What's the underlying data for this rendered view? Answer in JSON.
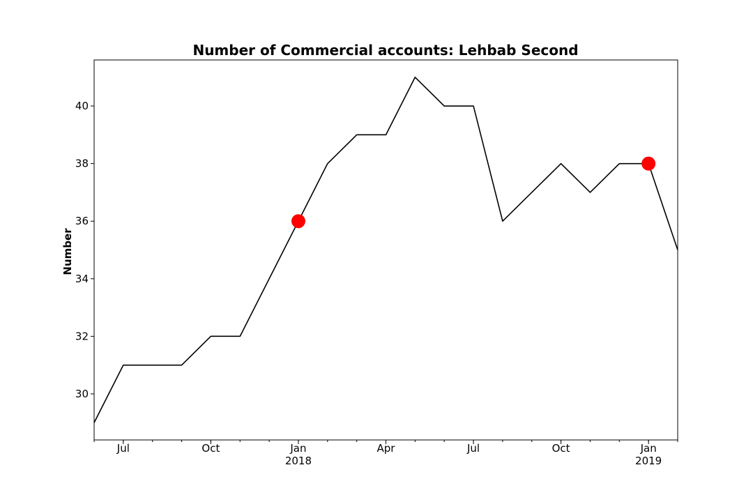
{
  "chart_data": {
    "type": "line",
    "title": "Number of Commercial accounts: Lehbab Second",
    "xlabel": "",
    "ylabel": "Number",
    "x": [
      "2017-06",
      "2017-07",
      "2017-08",
      "2017-09",
      "2017-10",
      "2017-11",
      "2017-12",
      "2018-01",
      "2018-02",
      "2018-03",
      "2018-04",
      "2018-05",
      "2018-06",
      "2018-07",
      "2018-08",
      "2018-09",
      "2018-10",
      "2018-11",
      "2018-12",
      "2019-01",
      "2019-02"
    ],
    "series": [
      {
        "values": [
          29,
          31,
          31,
          31,
          32,
          32,
          34,
          36,
          38,
          39,
          39,
          41,
          40,
          40,
          36,
          37,
          38,
          37,
          38,
          38,
          35
        ],
        "color": "#000000"
      }
    ],
    "highlight_points": [
      {
        "x": "2018-01",
        "y": 36,
        "color": "#ff0000"
      },
      {
        "x": "2019-01",
        "y": 38,
        "color": "#ff0000"
      }
    ],
    "ylim": [
      28.4,
      41.6
    ],
    "yticks": [
      30,
      32,
      34,
      36,
      38,
      40
    ],
    "xticks": [
      {
        "x": "2017-07",
        "label": "Jul",
        "sublabel": ""
      },
      {
        "x": "2017-10",
        "label": "Oct",
        "sublabel": ""
      },
      {
        "x": "2018-01",
        "label": "Jan",
        "sublabel": "2018"
      },
      {
        "x": "2018-04",
        "label": "Apr",
        "sublabel": ""
      },
      {
        "x": "2018-07",
        "label": "Jul",
        "sublabel": ""
      },
      {
        "x": "2018-10",
        "label": "Oct",
        "sublabel": ""
      },
      {
        "x": "2019-01",
        "label": "Jan",
        "sublabel": "2019"
      }
    ],
    "grid": false,
    "legend": "none"
  }
}
